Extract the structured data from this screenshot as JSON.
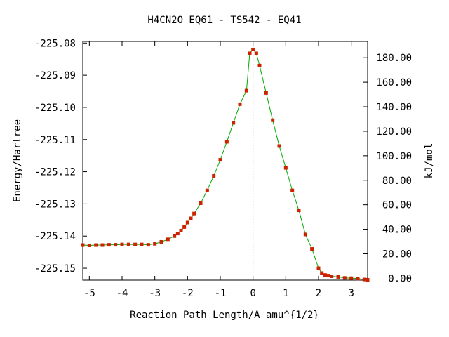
{
  "chart_data": {
    "type": "line",
    "title": "H4CN2O   EQ61 - TS542 - EQ41",
    "xlabel": "Reaction Path Length/A amu^{1/2}",
    "ylabel": "Energy/Hartree",
    "y2label": "kJ/mol",
    "xlim": [
      -5.2,
      3.5
    ],
    "ylim": [
      -225.1537,
      -225.0795
    ],
    "y2lim": [
      -1.5,
      193.3
    ],
    "x_ticks": [
      {
        "v": -5,
        "label": "-5"
      },
      {
        "v": -4,
        "label": "-4"
      },
      {
        "v": -3,
        "label": "-3"
      },
      {
        "v": -2,
        "label": "-2"
      },
      {
        "v": -1,
        "label": "-1"
      },
      {
        "v": 0,
        "label": "0"
      },
      {
        "v": 1,
        "label": "1"
      },
      {
        "v": 2,
        "label": "2"
      },
      {
        "v": 3,
        "label": "3"
      }
    ],
    "y_ticks": [
      {
        "v": -225.08,
        "label": "-225.08"
      },
      {
        "v": -225.09,
        "label": "-225.09"
      },
      {
        "v": -225.1,
        "label": "-225.10"
      },
      {
        "v": -225.11,
        "label": "-225.11"
      },
      {
        "v": -225.12,
        "label": "-225.12"
      },
      {
        "v": -225.13,
        "label": "-225.13"
      },
      {
        "v": -225.14,
        "label": "-225.14"
      },
      {
        "v": -225.15,
        "label": "-225.15"
      }
    ],
    "y2_ticks": [
      {
        "v": 0,
        "label": "0.00"
      },
      {
        "v": 20,
        "label": "20.00"
      },
      {
        "v": 40,
        "label": "40.00"
      },
      {
        "v": 60,
        "label": "60.00"
      },
      {
        "v": 80,
        "label": "80.00"
      },
      {
        "v": 100,
        "label": "100.00"
      },
      {
        "v": 120,
        "label": "120.00"
      },
      {
        "v": 140,
        "label": "140.00"
      },
      {
        "v": 160,
        "label": "160.00"
      },
      {
        "v": 180,
        "label": "180.00"
      }
    ],
    "ts_marker_x": 0,
    "line_color": "#00aa00",
    "marker_color": "#cc2200",
    "series": [
      {
        "x": [
          -5.2,
          -5.0,
          -4.8,
          -4.6,
          -4.4,
          -4.2,
          -4.0,
          -3.8,
          -3.6,
          -3.4,
          -3.2,
          -3.0,
          -2.8,
          -2.6,
          -2.4,
          -2.3,
          -2.2,
          -2.1,
          -2.0,
          -1.9,
          -1.8,
          -1.6,
          -1.4,
          -1.2,
          -1.0,
          -0.8,
          -0.6,
          -0.4,
          -0.2,
          -0.1,
          0.0,
          0.1,
          0.2,
          0.4,
          0.6,
          0.8,
          1.0,
          1.2,
          1.4,
          1.6,
          1.8,
          2.0,
          2.1,
          2.2,
          2.3,
          2.4,
          2.6,
          2.8,
          3.0,
          3.2,
          3.4,
          3.5
        ],
        "y": [
          -225.1428,
          -225.1429,
          -225.1428,
          -225.1428,
          -225.1427,
          -225.1427,
          -225.1426,
          -225.1426,
          -225.1426,
          -225.1426,
          -225.1427,
          -225.1424,
          -225.1418,
          -225.141,
          -225.14,
          -225.1392,
          -225.1383,
          -225.1372,
          -225.1358,
          -225.1345,
          -225.133,
          -225.1298,
          -225.1258,
          -225.1213,
          -225.1163,
          -225.1107,
          -225.1048,
          -225.099,
          -225.0948,
          -225.0832,
          -225.082,
          -225.0832,
          -225.087,
          -225.0955,
          -225.104,
          -225.112,
          -225.1188,
          -225.1258,
          -225.132,
          -225.1395,
          -225.144,
          -225.15,
          -225.1515,
          -225.1521,
          -225.1523,
          -225.1525,
          -225.1527,
          -225.153,
          -225.1531,
          -225.1532,
          -225.1535,
          -225.1536
        ]
      }
    ]
  }
}
